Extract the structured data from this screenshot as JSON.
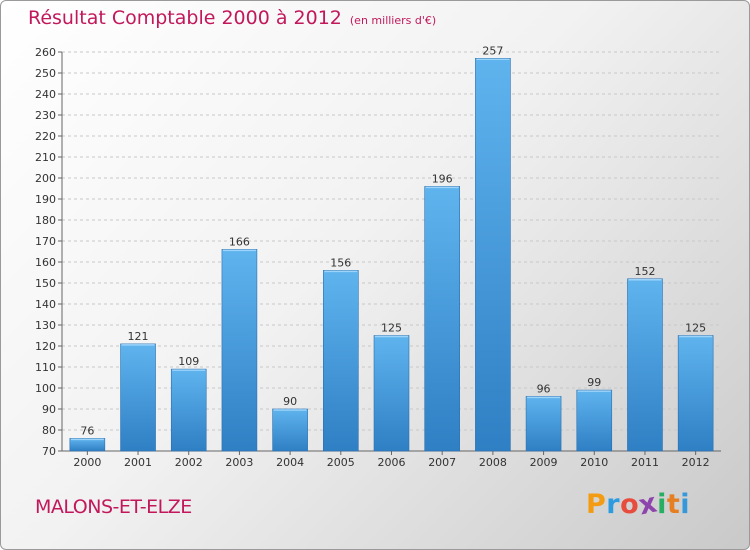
{
  "chart_data": {
    "type": "bar",
    "title": "Résultat Comptable 2000 à 2012",
    "subtitle": "(en milliers d'€)",
    "categories": [
      "2000",
      "2001",
      "2002",
      "2003",
      "2004",
      "2005",
      "2006",
      "2007",
      "2008",
      "2009",
      "2010",
      "2011",
      "2012"
    ],
    "values": [
      76,
      121,
      109,
      166,
      90,
      156,
      125,
      196,
      257,
      96,
      99,
      152,
      125
    ],
    "ylim": [
      70,
      260
    ],
    "ytick_step": 10,
    "xlabel": "",
    "ylabel": "",
    "grid": true,
    "bar_color": "#4a9ee0"
  },
  "commune": "MALONS-ET-ELZE",
  "brand": {
    "letters": [
      "P",
      "r",
      "o",
      "x",
      "i",
      "t",
      "i"
    ],
    "colors": [
      "#f39c12",
      "#2e9be0",
      "#e74c3c",
      "#8e44ad",
      "#27ae60",
      "#e67e22",
      "#3498db"
    ]
  }
}
